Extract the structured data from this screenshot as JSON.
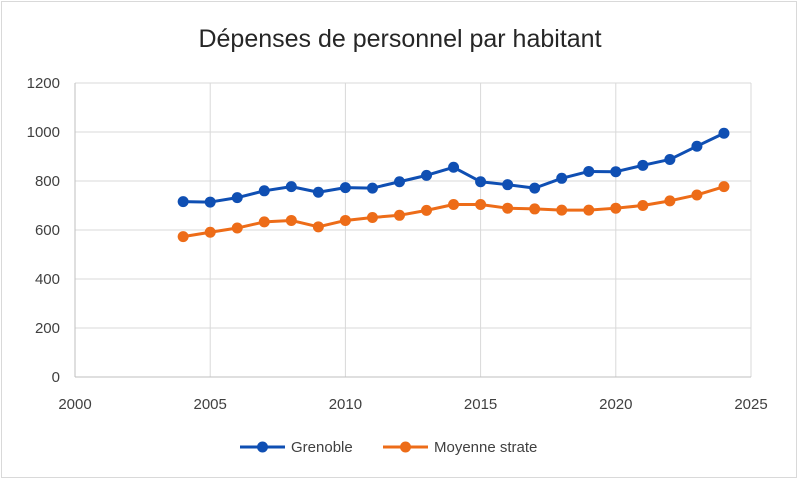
{
  "chart_data": {
    "type": "line",
    "title": "Dépenses de personnel par habitant",
    "xlabel": "",
    "ylabel": "",
    "xlim": [
      2000,
      2025
    ],
    "ylim": [
      0,
      1200
    ],
    "xticks": [
      2000,
      2005,
      2010,
      2015,
      2020,
      2025
    ],
    "yticks": [
      0,
      200,
      400,
      600,
      800,
      1000,
      1200
    ],
    "grid": true,
    "legend_position": "bottom",
    "series": [
      {
        "name": "Grenoble",
        "color": "#0f4fb3",
        "x": [
          2004,
          2005,
          2006,
          2007,
          2008,
          2009,
          2010,
          2011,
          2012,
          2013,
          2014,
          2015,
          2016,
          2017,
          2018,
          2019,
          2020,
          2021,
          2022,
          2023,
          2024
        ],
        "y": [
          716,
          714,
          732,
          760,
          777,
          754,
          773,
          771,
          797,
          823,
          856,
          797,
          785,
          771,
          811,
          839,
          838,
          864,
          888,
          942,
          995
        ]
      },
      {
        "name": "Moyenne strate",
        "color": "#ed6c18",
        "x": [
          2004,
          2005,
          2006,
          2007,
          2008,
          2009,
          2010,
          2011,
          2012,
          2013,
          2014,
          2015,
          2016,
          2017,
          2018,
          2019,
          2020,
          2021,
          2022,
          2023,
          2024
        ],
        "y": [
          573,
          591,
          608,
          633,
          639,
          613,
          639,
          651,
          660,
          680,
          704,
          704,
          689,
          686,
          681,
          681,
          689,
          700,
          719,
          743,
          777
        ]
      }
    ]
  }
}
